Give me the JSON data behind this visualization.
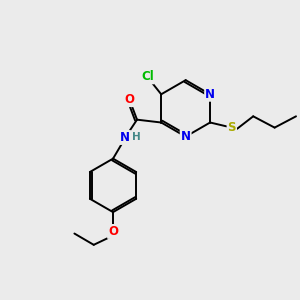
{
  "background_color": "#ebebeb",
  "bond_color": "#000000",
  "atom_colors": {
    "Cl": "#00bb00",
    "N": "#0000ee",
    "O": "#ff0000",
    "S": "#aaaa00",
    "H": "#448888"
  },
  "figsize": [
    3.0,
    3.0
  ],
  "dpi": 100,
  "lw": 1.4,
  "fs": 8.5
}
